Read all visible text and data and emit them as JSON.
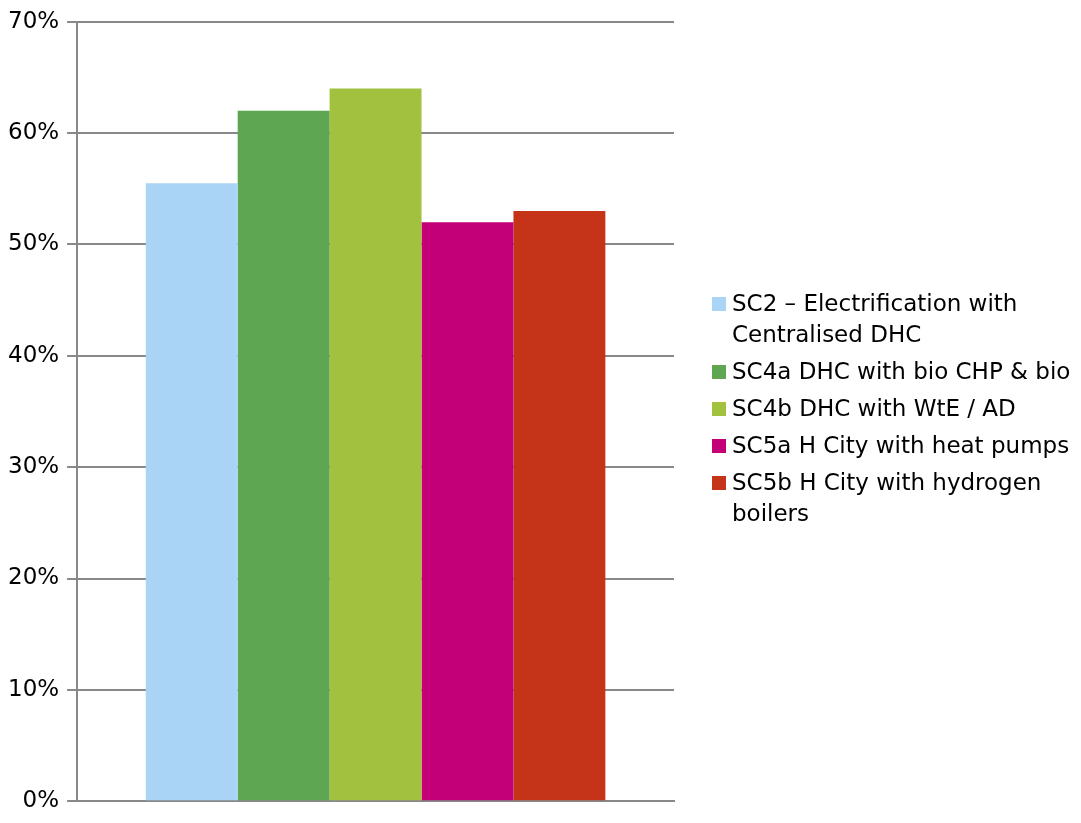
{
  "chart_data": {
    "type": "bar",
    "categories": [
      null
    ],
    "series": [
      {
        "name": "SC2 – Electrification with Centralised DHC",
        "color": "#a9d4f5",
        "values": [
          55.5
        ]
      },
      {
        "name": "SC4a DHC with bio CHP & bio",
        "color": "#5ea651",
        "values": [
          62
        ]
      },
      {
        "name": "SC4b DHC with WtE / AD",
        "color": "#a2c13e",
        "values": [
          64
        ]
      },
      {
        "name": "SC5a H City with heat pumps",
        "color": "#c30077",
        "values": [
          52
        ]
      },
      {
        "name": "SC5b H City with hydrogen boilers",
        "color": "#c53418",
        "values": [
          53
        ]
      }
    ],
    "ylim": [
      0,
      70
    ],
    "yticks": [
      {
        "value": 0,
        "label": "0%"
      },
      {
        "value": 10,
        "label": "10%"
      },
      {
        "value": 20,
        "label": "20%"
      },
      {
        "value": 30,
        "label": "30%"
      },
      {
        "value": 40,
        "label": "40%"
      },
      {
        "value": 50,
        "label": "50%"
      },
      {
        "value": 60,
        "label": "60%"
      },
      {
        "value": 70,
        "label": "70%"
      }
    ],
    "grid": "y",
    "legend": "right"
  }
}
